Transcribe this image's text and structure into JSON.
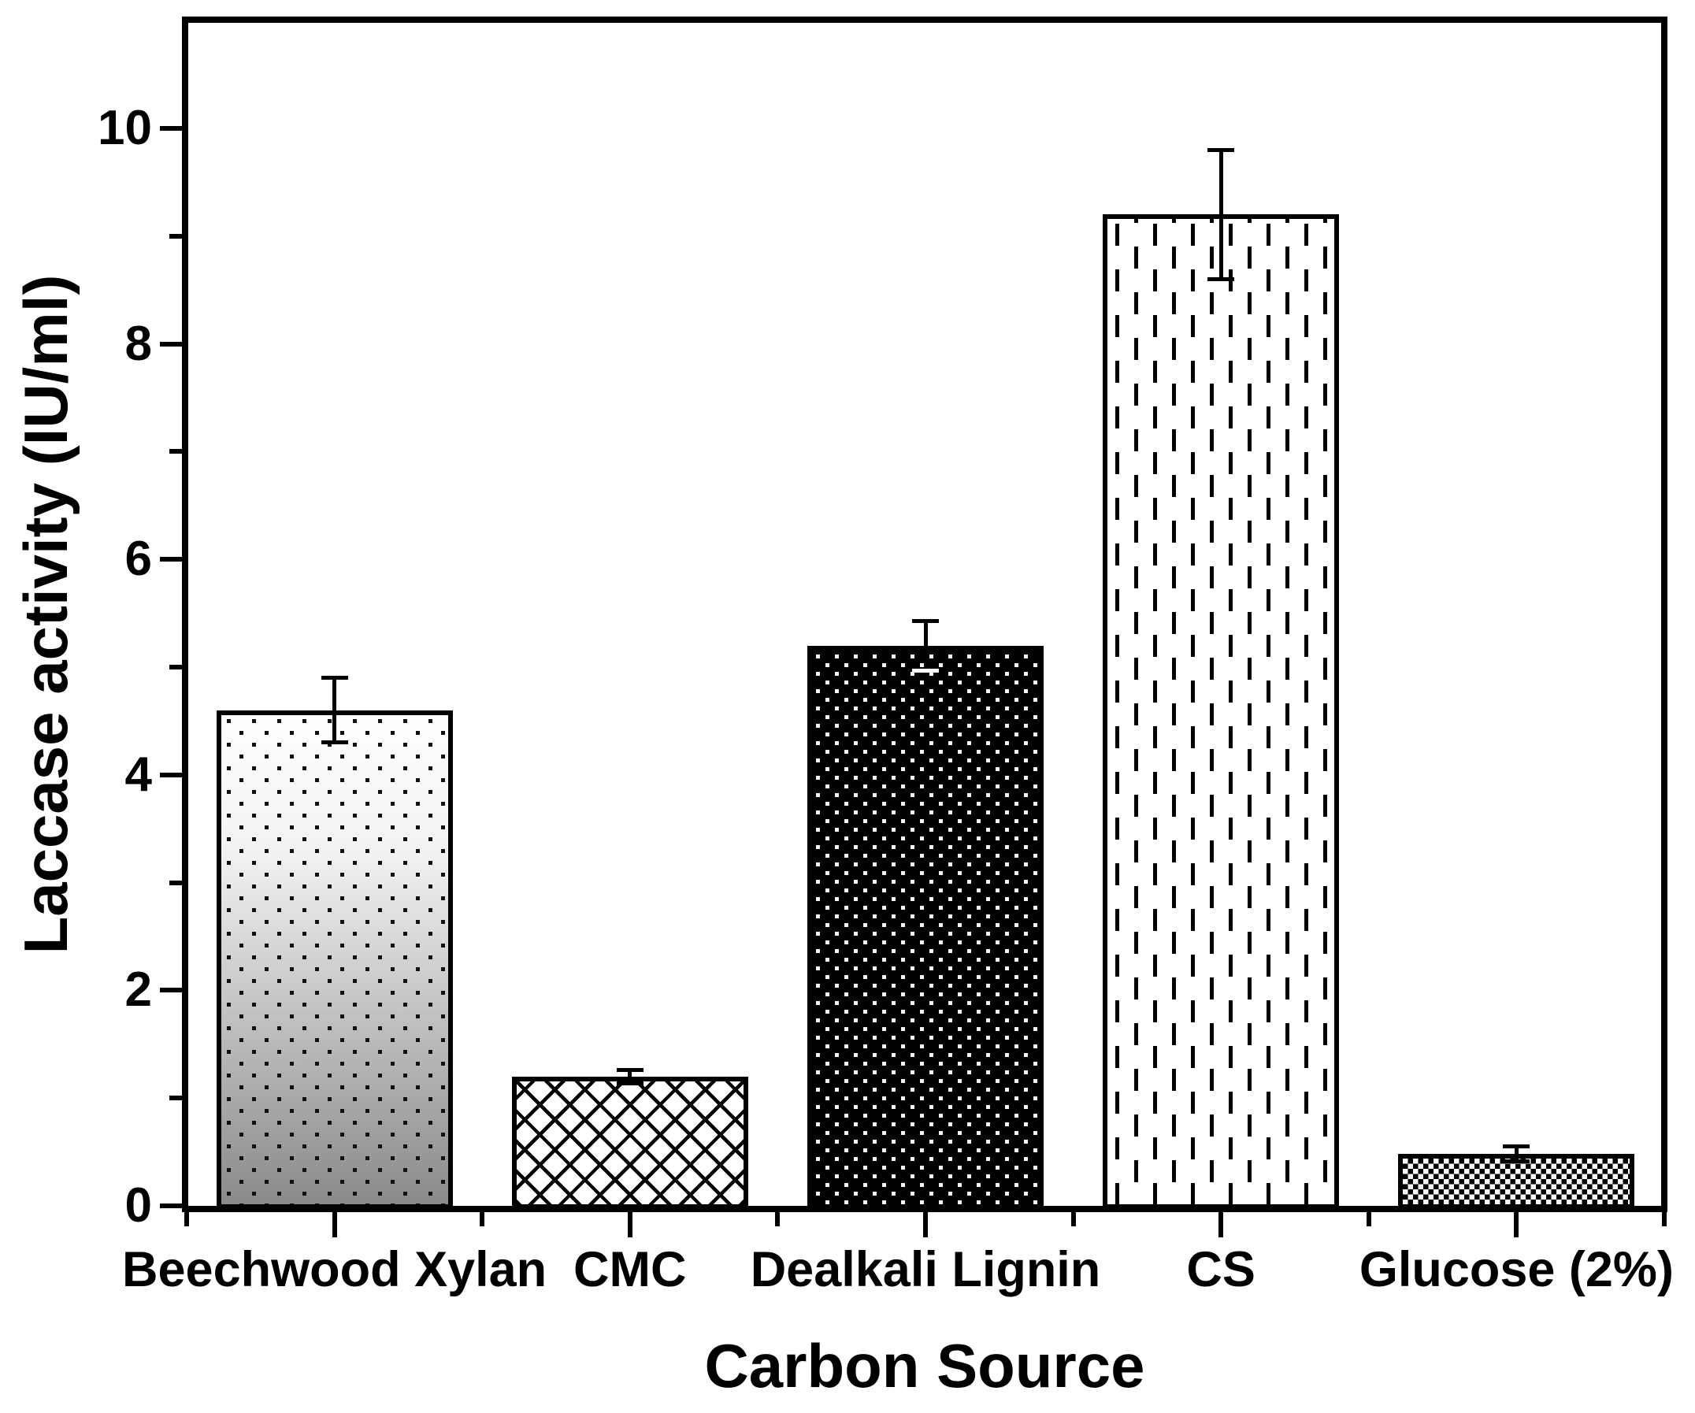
{
  "figure": {
    "title": "",
    "y_axis_label": "Laccase activity (IU/ml)",
    "x_axis_label": "Carbon Source"
  },
  "chart_data": {
    "type": "bar",
    "title": "",
    "xlabel": "Carbon Source",
    "ylabel": "Laccase activity (IU/ml)",
    "ylim": [
      0,
      11
    ],
    "yticks": [
      0,
      2,
      4,
      6,
      8,
      10
    ],
    "y_minor_ticks": [
      1,
      3,
      5,
      7,
      9
    ],
    "grid": false,
    "legend_position": "none",
    "categories": [
      "Beechwood Xylan",
      "CMC",
      "Dealkali Lignin",
      "CS",
      "Glucose (2%)"
    ],
    "values": [
      4.6,
      1.2,
      5.2,
      9.2,
      0.48
    ],
    "errors": [
      0.3,
      0.06,
      0.23,
      0.6,
      0.07
    ],
    "error_bar_style": "caps, plus-minus",
    "bar_patterns": [
      "black-dots-on-white-to-gray-gradient",
      "diagonal-crosshatch",
      "white-dots-on-black",
      "staggered-vertical-dashes",
      "checkerboard"
    ],
    "bottom_cap_white": [
      false,
      false,
      true,
      false,
      false
    ],
    "outline_color": "#000000",
    "background_color": "#ffffff"
  }
}
